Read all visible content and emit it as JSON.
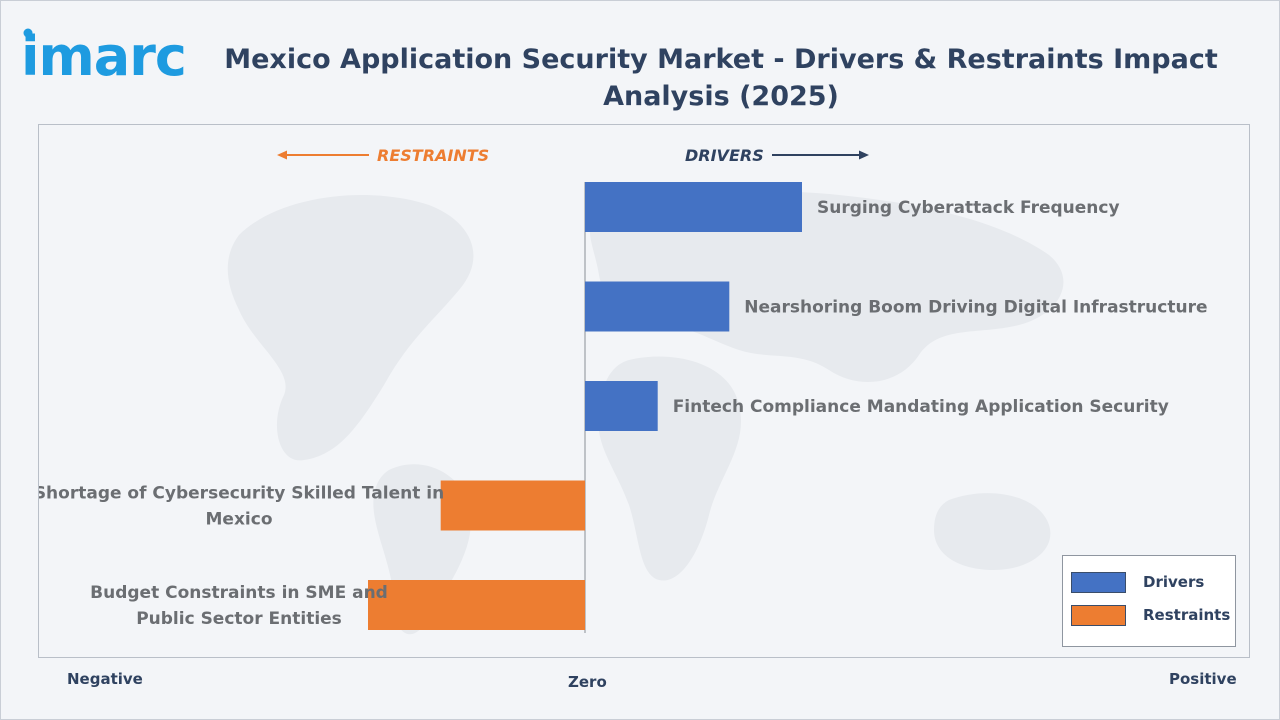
{
  "header": {
    "logo_text": "imarc",
    "title": "Mexico Application Security Market - Drivers & Restraints Impact Analysis (2025)"
  },
  "directions": {
    "restraints": "RESTRAINTS",
    "drivers": "DRIVERS"
  },
  "axis": {
    "negative": "Negative",
    "zero": "Zero",
    "positive": "Positive"
  },
  "legend": {
    "drivers": "Drivers",
    "restraints": "Restraints"
  },
  "colors": {
    "drivers": "#4472c4",
    "restraints": "#ed7d31",
    "restraints_arrow": "#ed7d31",
    "drivers_arrow": "#2f4260"
  },
  "chart_data": {
    "type": "bar",
    "orientation": "horizontal",
    "title": "Mexico Application Security Market - Drivers & Restraints Impact Analysis (2025)",
    "xlim": [
      -3,
      3
    ],
    "categories": [
      "Surging Cyberattack Frequency",
      "Nearshoring Boom Driving Digital Infrastructure",
      "Fintech Compliance Mandating Application Security",
      "Shortage of Cybersecurity Skilled Talent in Mexico",
      "Budget Constraints in SME and Public Sector Entities"
    ],
    "label_lines": [
      [
        "Surging Cyberattack Frequency"
      ],
      [
        "Nearshoring Boom Driving Digital Infrastructure"
      ],
      [
        "Fintech Compliance Mandating Application Security"
      ],
      [
        "Shortage of Cybersecurity Skilled Talent in",
        "Mexico"
      ],
      [
        "Budget Constraints in SME and",
        "Public Sector Entities"
      ]
    ],
    "series": [
      {
        "name": "Drivers",
        "values": [
          2.0,
          1.33,
          0.67,
          null,
          null
        ]
      },
      {
        "name": "Restraints",
        "values": [
          null,
          null,
          null,
          -1.33,
          -2.0
        ]
      }
    ],
    "grid": false,
    "legend_position": "bottom-right"
  }
}
